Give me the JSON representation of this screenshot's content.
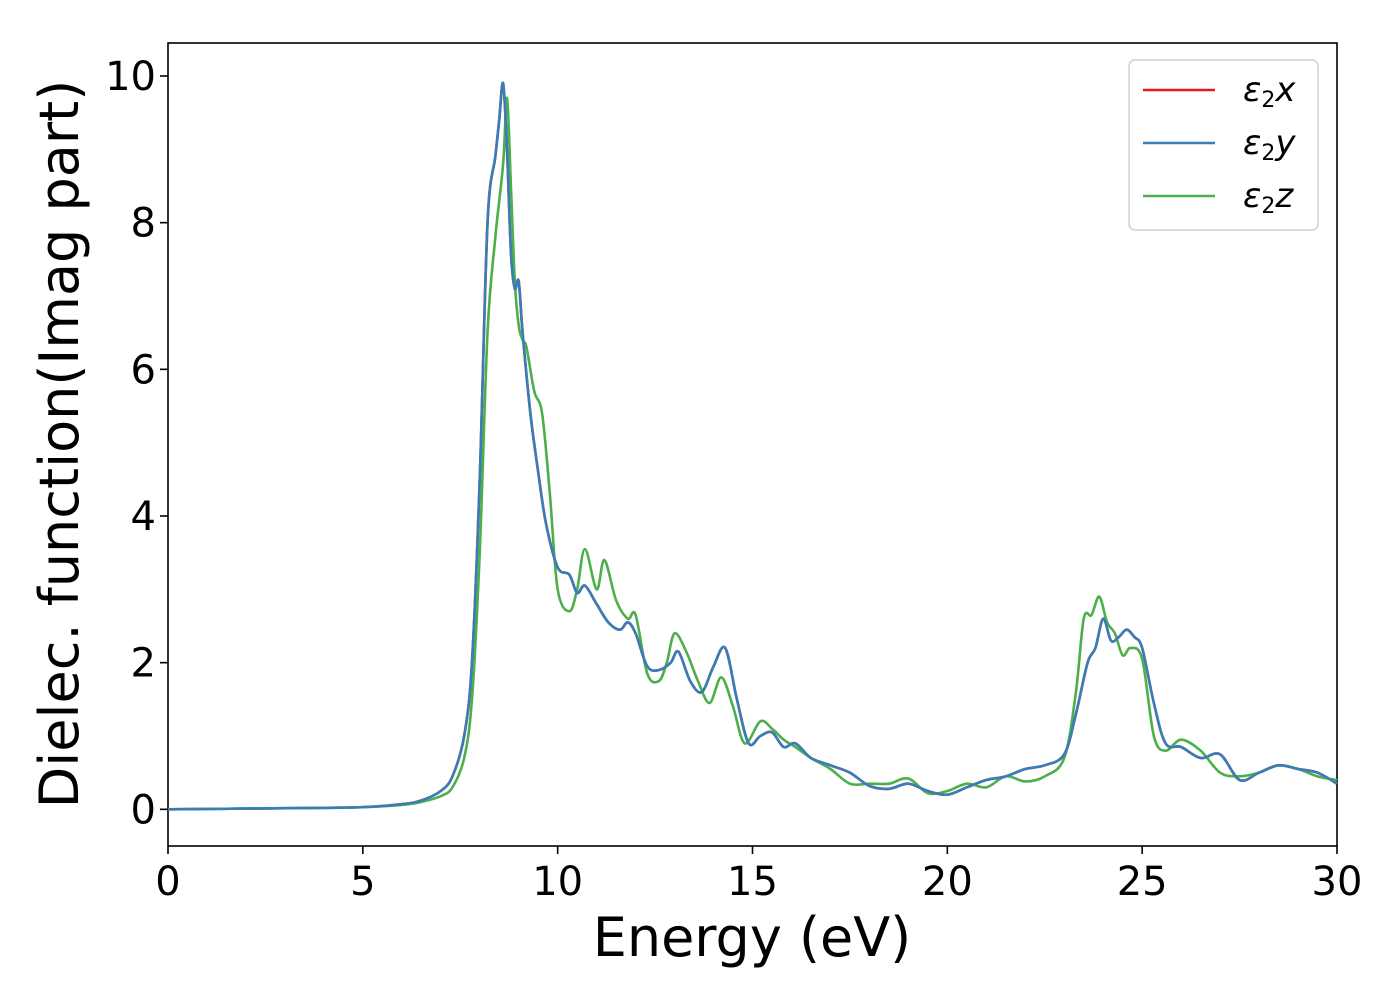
{
  "chart_data": {
    "type": "line",
    "title": "",
    "xlabel": "Energy (eV)",
    "ylabel": "Dielec. function(Imag part)",
    "xlim": [
      0,
      30
    ],
    "ylim": [
      -0.5,
      10.45
    ],
    "xticks": [
      "0",
      "5",
      "10",
      "15",
      "20",
      "25",
      "30"
    ],
    "yticks": [
      "0",
      "2",
      "4",
      "6",
      "8",
      "10"
    ],
    "grid": false,
    "legend_position": "top-right",
    "legend": [
      {
        "base": "ε",
        "sub": "2",
        "suffix": "x",
        "color": "#e41a1c"
      },
      {
        "base": "ε",
        "sub": "2",
        "suffix": "y",
        "color": "#377eb8"
      },
      {
        "base": "ε",
        "sub": "2",
        "suffix": "z",
        "color": "#4daf4a"
      }
    ],
    "series": [
      {
        "name": "ε2x",
        "color": "#e41a1c",
        "x": [
          0,
          2,
          4,
          5,
          6,
          6.5,
          7,
          7.3,
          7.6,
          7.8,
          8.0,
          8.2,
          8.4,
          8.5,
          8.6,
          8.7,
          8.8,
          8.9,
          9.0,
          9.1,
          9.3,
          9.5,
          9.7,
          10.0,
          10.3,
          10.5,
          10.7,
          11.0,
          11.3,
          11.6,
          11.8,
          12.0,
          12.3,
          12.6,
          12.9,
          13.1,
          13.4,
          13.7,
          14.0,
          14.3,
          14.6,
          14.9,
          15.2,
          15.5,
          15.8,
          16.1,
          16.5,
          17.0,
          17.5,
          18.0,
          18.5,
          19.0,
          19.5,
          20.0,
          20.5,
          21.0,
          21.5,
          22.0,
          22.5,
          23.0,
          23.3,
          23.6,
          23.8,
          24.0,
          24.2,
          24.4,
          24.6,
          24.8,
          25.0,
          25.3,
          25.6,
          26.0,
          26.5,
          27.0,
          27.5,
          28.0,
          28.5,
          29.0,
          29.5,
          30.0
        ],
        "y": [
          0,
          0.01,
          0.02,
          0.03,
          0.07,
          0.12,
          0.25,
          0.45,
          1.0,
          2.0,
          4.5,
          8.0,
          8.9,
          9.4,
          9.9,
          9.0,
          7.6,
          7.1,
          7.2,
          6.5,
          5.4,
          4.6,
          3.9,
          3.3,
          3.2,
          2.95,
          3.05,
          2.8,
          2.55,
          2.45,
          2.55,
          2.4,
          1.95,
          1.9,
          2.0,
          2.15,
          1.75,
          1.6,
          1.95,
          2.2,
          1.5,
          0.9,
          1.0,
          1.05,
          0.85,
          0.9,
          0.7,
          0.6,
          0.5,
          0.32,
          0.28,
          0.35,
          0.25,
          0.2,
          0.3,
          0.4,
          0.45,
          0.55,
          0.6,
          0.75,
          1.3,
          2.0,
          2.2,
          2.6,
          2.3,
          2.35,
          2.45,
          2.35,
          2.2,
          1.45,
          0.9,
          0.85,
          0.7,
          0.75,
          0.4,
          0.5,
          0.6,
          0.55,
          0.5,
          0.35
        ]
      },
      {
        "name": "ε2y",
        "color": "#377eb8",
        "x": [
          0,
          2,
          4,
          5,
          6,
          6.5,
          7,
          7.3,
          7.6,
          7.8,
          8.0,
          8.2,
          8.4,
          8.5,
          8.6,
          8.7,
          8.8,
          8.9,
          9.0,
          9.1,
          9.3,
          9.5,
          9.7,
          10.0,
          10.3,
          10.5,
          10.7,
          11.0,
          11.3,
          11.6,
          11.8,
          12.0,
          12.3,
          12.6,
          12.9,
          13.1,
          13.4,
          13.7,
          14.0,
          14.3,
          14.6,
          14.9,
          15.2,
          15.5,
          15.8,
          16.1,
          16.5,
          17.0,
          17.5,
          18.0,
          18.5,
          19.0,
          19.5,
          20.0,
          20.5,
          21.0,
          21.5,
          22.0,
          22.5,
          23.0,
          23.3,
          23.6,
          23.8,
          24.0,
          24.2,
          24.4,
          24.6,
          24.8,
          25.0,
          25.3,
          25.6,
          26.0,
          26.5,
          27.0,
          27.5,
          28.0,
          28.5,
          29.0,
          29.5,
          30.0
        ],
        "y": [
          0,
          0.01,
          0.02,
          0.03,
          0.07,
          0.12,
          0.25,
          0.45,
          1.0,
          2.0,
          4.5,
          8.0,
          8.9,
          9.4,
          9.9,
          9.0,
          7.6,
          7.1,
          7.2,
          6.5,
          5.4,
          4.6,
          3.9,
          3.3,
          3.2,
          2.95,
          3.05,
          2.8,
          2.55,
          2.45,
          2.55,
          2.4,
          1.95,
          1.9,
          2.0,
          2.15,
          1.75,
          1.6,
          1.95,
          2.2,
          1.5,
          0.9,
          1.0,
          1.05,
          0.85,
          0.9,
          0.7,
          0.6,
          0.5,
          0.32,
          0.28,
          0.35,
          0.25,
          0.2,
          0.3,
          0.4,
          0.45,
          0.55,
          0.6,
          0.75,
          1.3,
          2.0,
          2.2,
          2.6,
          2.3,
          2.35,
          2.45,
          2.35,
          2.2,
          1.45,
          0.9,
          0.85,
          0.7,
          0.75,
          0.4,
          0.5,
          0.6,
          0.55,
          0.5,
          0.35
        ]
      },
      {
        "name": "ε2z",
        "color": "#4daf4a",
        "x": [
          0,
          2,
          4,
          5,
          6,
          6.5,
          7,
          7.3,
          7.6,
          7.8,
          8.0,
          8.2,
          8.4,
          8.6,
          8.7,
          8.8,
          8.9,
          9.0,
          9.1,
          9.2,
          9.4,
          9.6,
          9.8,
          10.0,
          10.3,
          10.5,
          10.7,
          11.0,
          11.2,
          11.5,
          11.8,
          12.0,
          12.3,
          12.6,
          12.8,
          13.0,
          13.3,
          13.6,
          13.9,
          14.2,
          14.5,
          14.8,
          15.2,
          15.5,
          15.8,
          16.1,
          16.5,
          17.0,
          17.5,
          18.0,
          18.5,
          19.0,
          19.5,
          20.0,
          20.5,
          21.0,
          21.5,
          22.0,
          22.5,
          23.0,
          23.3,
          23.5,
          23.7,
          23.9,
          24.1,
          24.3,
          24.5,
          24.7,
          25.0,
          25.3,
          25.6,
          26.0,
          26.5,
          27.0,
          27.5,
          28.0,
          28.5,
          29.0,
          29.5,
          30.0
        ],
        "y": [
          0,
          0.01,
          0.02,
          0.03,
          0.06,
          0.1,
          0.18,
          0.3,
          0.7,
          1.5,
          3.5,
          6.5,
          7.8,
          8.8,
          9.7,
          8.5,
          7.2,
          6.6,
          6.4,
          6.3,
          5.7,
          5.4,
          4.3,
          3.0,
          2.7,
          3.0,
          3.55,
          3.0,
          3.4,
          2.85,
          2.6,
          2.65,
          1.85,
          1.75,
          2.0,
          2.4,
          2.15,
          1.75,
          1.45,
          1.8,
          1.4,
          0.9,
          1.2,
          1.1,
          0.95,
          0.85,
          0.7,
          0.55,
          0.35,
          0.35,
          0.35,
          0.42,
          0.22,
          0.25,
          0.35,
          0.3,
          0.45,
          0.38,
          0.45,
          0.7,
          1.6,
          2.6,
          2.65,
          2.9,
          2.55,
          2.4,
          2.1,
          2.2,
          2.05,
          1.0,
          0.8,
          0.95,
          0.8,
          0.5,
          0.45,
          0.5,
          0.6,
          0.55,
          0.45,
          0.4
        ]
      }
    ]
  }
}
